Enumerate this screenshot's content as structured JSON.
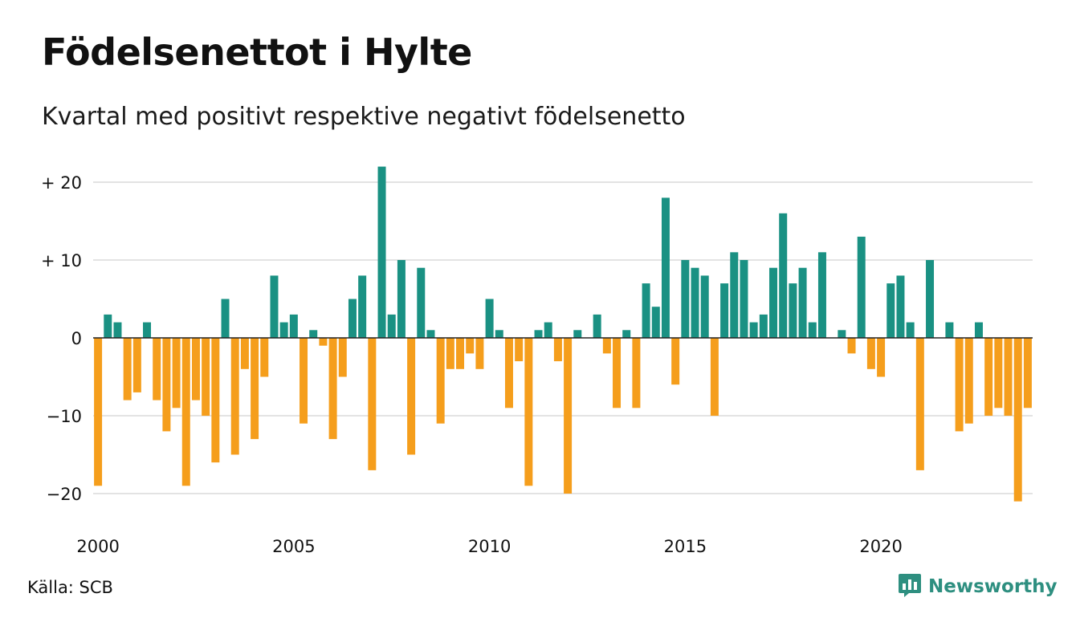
{
  "title": "Födelsenettot i Hylte",
  "subtitle": "Kvartal med positivt respektive negativt födelsenetto",
  "source": "Källa: SCB",
  "brand": {
    "name": "Newsworthy",
    "icon": "bar-chart-speech-bubble-icon"
  },
  "colors": {
    "positive": "#1a9183",
    "negative": "#f59e1c",
    "grid": "#e3e3e3",
    "baseline": "#222222"
  },
  "chart_data": {
    "type": "bar",
    "title": "Födelsenettot i Hylte",
    "subtitle": "Kvartal med positivt respektive negativt födelsenetto",
    "xlabel": "",
    "ylabel": "",
    "ylim": [
      -22,
      22
    ],
    "grid": true,
    "y_ticks": [
      {
        "value": 20,
        "label": "+ 20"
      },
      {
        "value": 10,
        "label": "+ 10"
      },
      {
        "value": 0,
        "label": "0"
      },
      {
        "value": -10,
        "label": "−10"
      },
      {
        "value": -20,
        "label": "−20"
      }
    ],
    "x_ticks": [
      {
        "value": "2000",
        "label": "2000"
      },
      {
        "value": "2005",
        "label": "2005"
      },
      {
        "value": "2010",
        "label": "2010"
      },
      {
        "value": "2015",
        "label": "2015"
      },
      {
        "value": "2020",
        "label": "2020"
      }
    ],
    "x_range": [
      "2000",
      "2024"
    ],
    "values": [
      -19,
      3,
      2,
      -8,
      -7,
      2,
      -8,
      -12,
      -9,
      -19,
      -8,
      -10,
      -16,
      5,
      -15,
      -4,
      -13,
      -5,
      8,
      2,
      3,
      -11,
      1,
      -1,
      -13,
      -5,
      5,
      8,
      -17,
      22,
      3,
      10,
      -15,
      9,
      1,
      -11,
      -4,
      -4,
      -2,
      -4,
      5,
      1,
      -9,
      -3,
      -19,
      1,
      2,
      -3,
      -20,
      1,
      0,
      3,
      -2,
      -9,
      1,
      -9,
      7,
      4,
      18,
      -6,
      10,
      9,
      8,
      -10,
      7,
      11,
      10,
      2,
      3,
      9,
      16,
      7,
      9,
      2,
      11,
      0,
      1,
      -2,
      13,
      -4,
      -5,
      7,
      8,
      2,
      -17,
      10,
      0,
      2,
      -12,
      -11,
      2,
      -10,
      -9,
      -10,
      -21,
      -9
    ]
  }
}
